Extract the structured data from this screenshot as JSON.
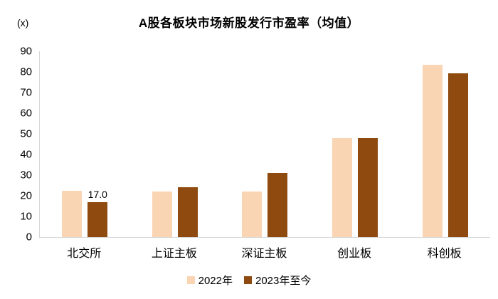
{
  "unit_label": "(x)",
  "title": "A股各板块市场新股发行市盈率（均值）",
  "colors": {
    "series_2022": "#FAD5B4",
    "series_2023": "#8E4A0F",
    "axis_line": "#D6D6D6",
    "text": "#000000",
    "background": "#FFFFFF"
  },
  "chart_data": {
    "type": "bar",
    "title": "A股各板块市场新股发行市盈率（均值）",
    "unit": "(x)",
    "xlabel": "",
    "ylabel": "",
    "categories": [
      "北交所",
      "上证主板",
      "深证主板",
      "创业板",
      "科创板"
    ],
    "series": [
      {
        "name": "2022年",
        "color": "#FAD5B4",
        "values": [
          22.5,
          22.0,
          22.0,
          48.0,
          83.5
        ],
        "point_labels": [
          "",
          "",
          "",
          "",
          ""
        ]
      },
      {
        "name": "2023年至今",
        "color": "#8E4A0F",
        "values": [
          17.0,
          24.0,
          31.0,
          48.0,
          79.5
        ],
        "point_labels": [
          "17.0",
          "",
          "",
          "",
          ""
        ]
      }
    ],
    "ylim": [
      0,
      90
    ],
    "ytick_step": 10,
    "ytick_labels": [
      "0",
      "10",
      "20",
      "30",
      "40",
      "50",
      "60",
      "70",
      "80",
      "90"
    ],
    "grid": false,
    "legend_position": "bottom"
  },
  "legend": {
    "entries": [
      {
        "label": "2022年",
        "color": "#FAD5B4"
      },
      {
        "label": "2023年至今",
        "color": "#8E4A0F"
      }
    ]
  }
}
